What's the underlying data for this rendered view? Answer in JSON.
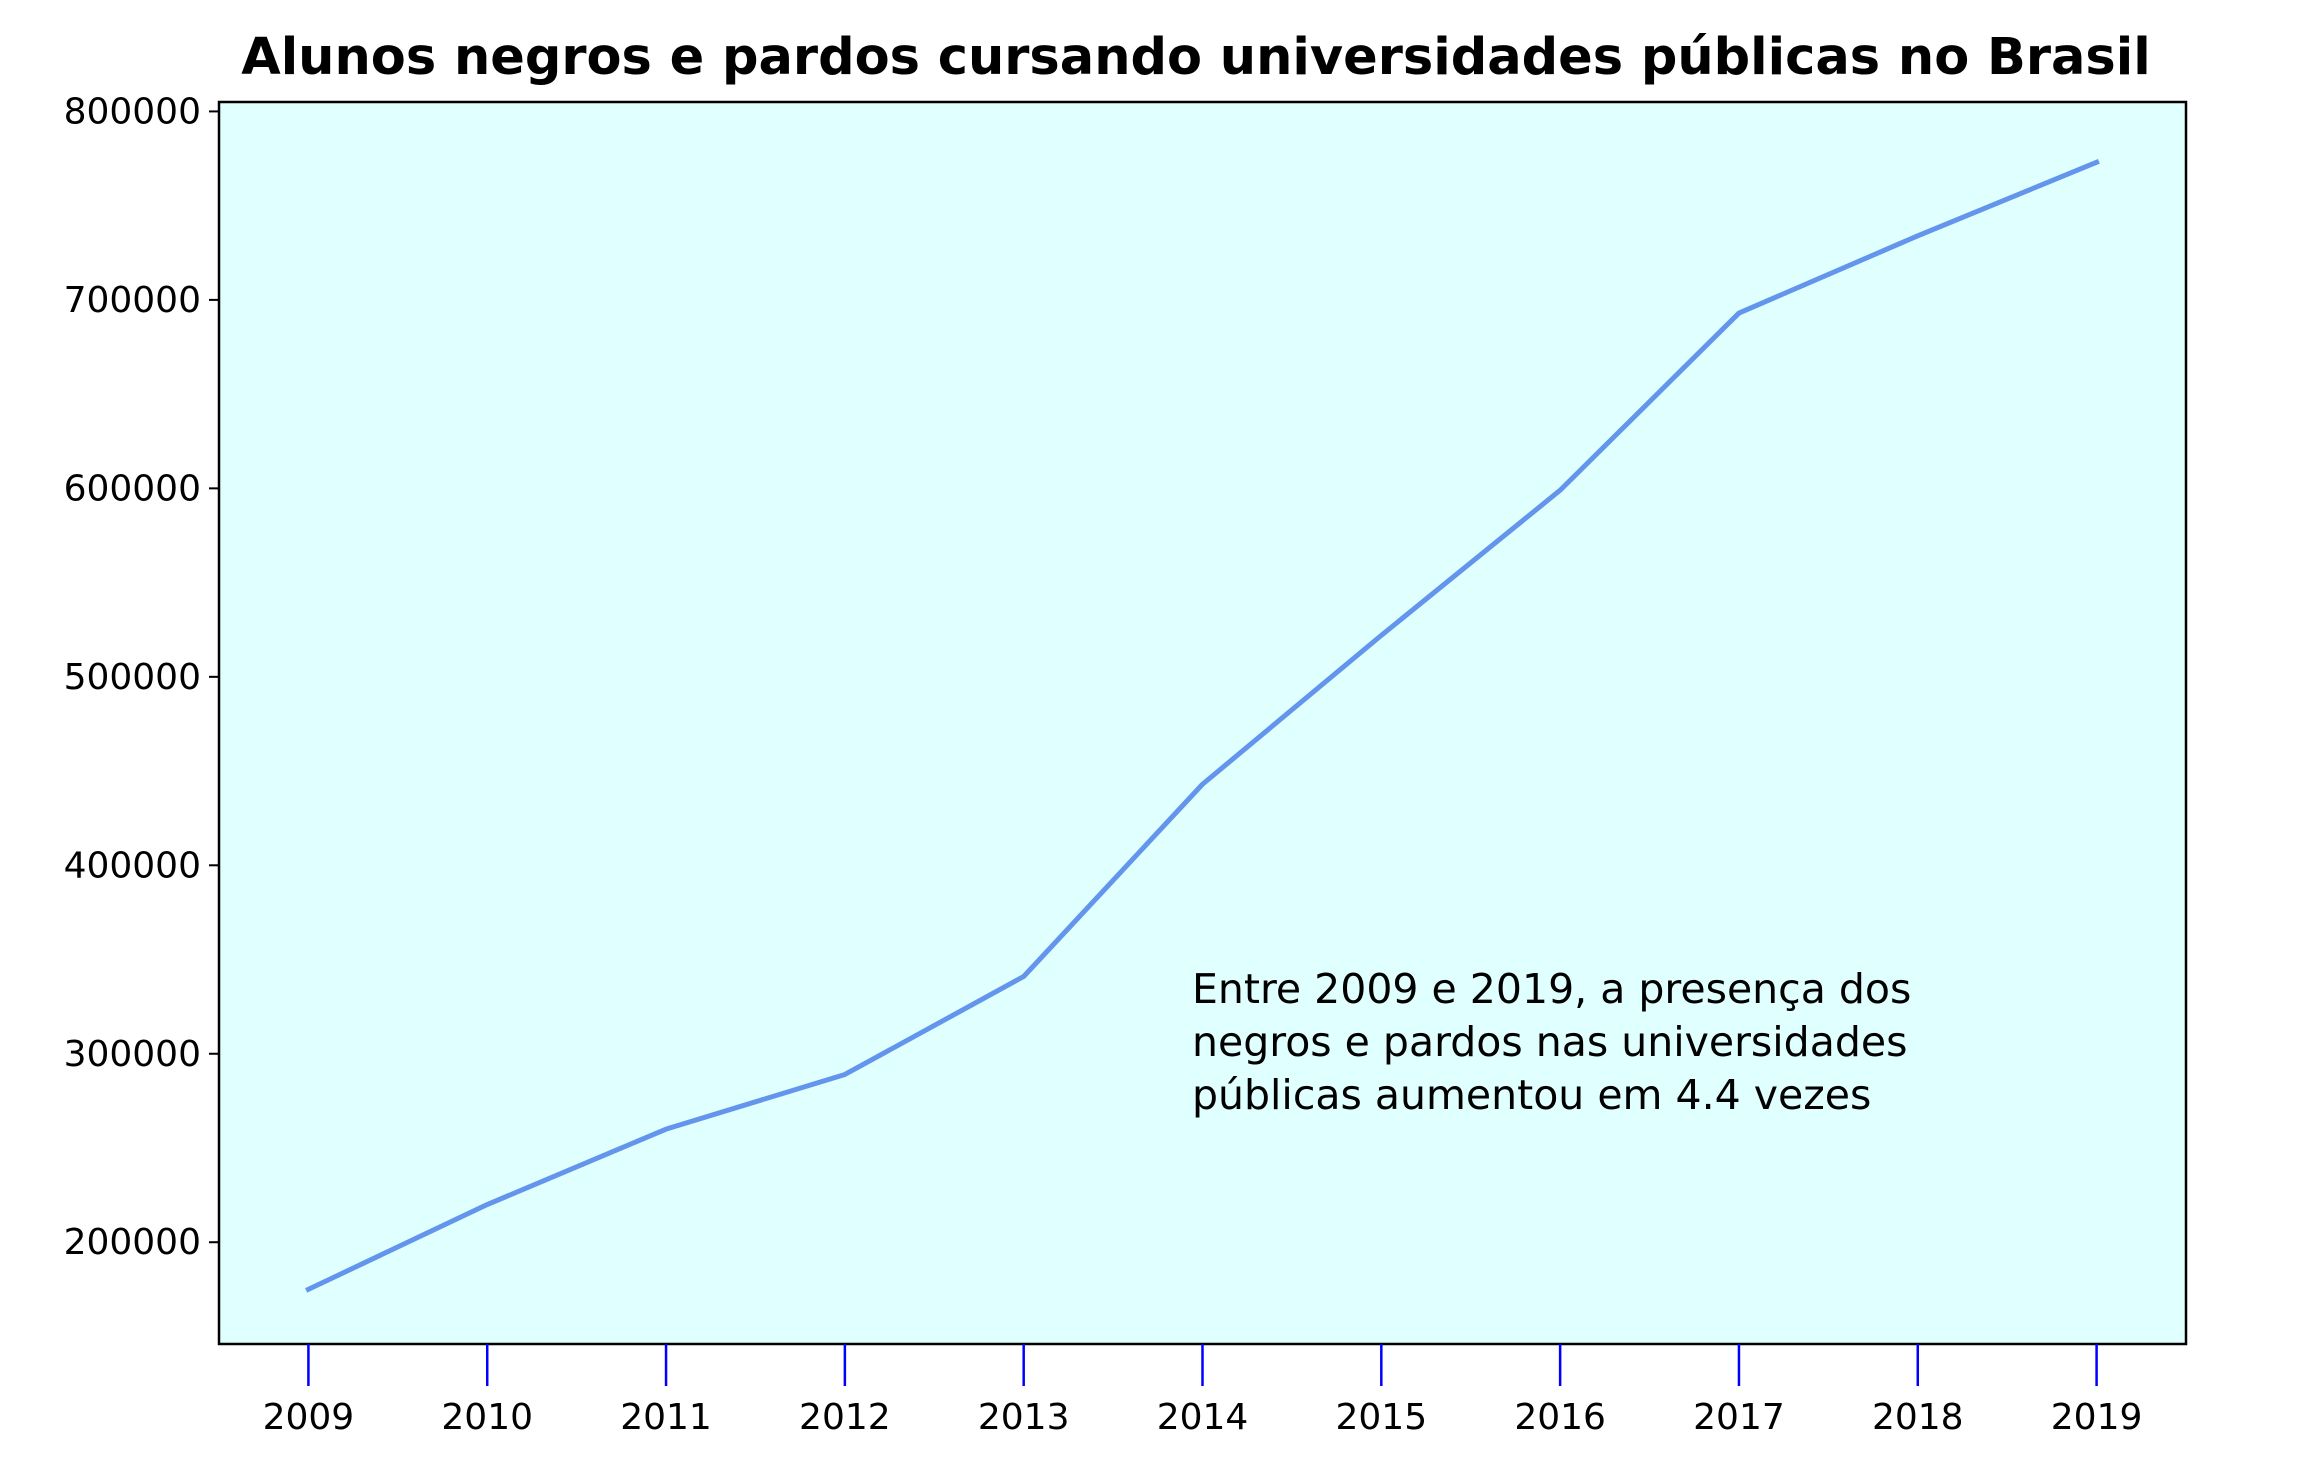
{
  "chart_data": {
    "type": "line",
    "title": "Alunos negros e pardos cursando universidades públicas no Brasil",
    "xlabel": "",
    "ylabel": "",
    "x": [
      2009,
      2010,
      2011,
      2012,
      2013,
      2014,
      2015,
      2016,
      2017,
      2018,
      2019
    ],
    "series": [
      {
        "values": [
          175000,
          220000,
          260000,
          289000,
          341000,
          443000,
          522000,
          599000,
          693000,
          734000,
          773000
        ]
      }
    ],
    "xlim": [
      2008.5,
      2019.5
    ],
    "ylim": [
      146000,
      805000
    ],
    "yticks": [
      200000,
      300000,
      400000,
      500000,
      600000,
      700000,
      800000
    ],
    "xticks": [
      2009,
      2010,
      2011,
      2012,
      2013,
      2014,
      2015,
      2016,
      2017,
      2018,
      2019
    ],
    "annotation": [
      "Entre 2009 e 2019, a presença dos",
      "negros e pardos nas universidades",
      "públicas aumentou em 4.4 vezes"
    ],
    "grid": false,
    "colors": {
      "line": "#6495ED",
      "plot_background": "#E0FFFF",
      "x_tick": "#0000FF",
      "axis": "#000000"
    }
  }
}
